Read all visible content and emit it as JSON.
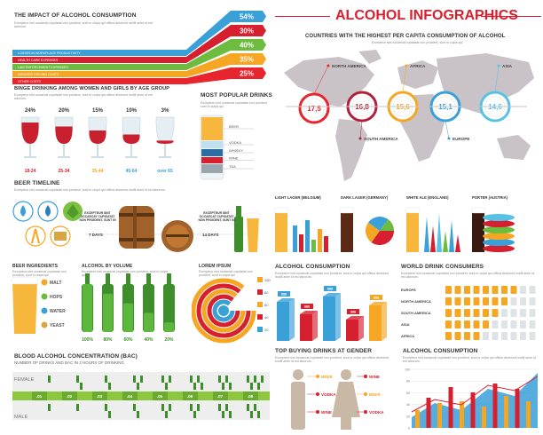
{
  "title": "ALCOHOL INFOGRAPHICS",
  "lorem": "Excepteur sint occaecat cupidatat non proident, sunt in culpa qui officia deserunt mollit anim id est laborum.",
  "lorem_short": "Excepteur sint occaecat cupidatat non proident, sunt in culpa qui",
  "impact": {
    "heading": "THE IMPACT OF ALCOHOL CONSUMPTION",
    "bands": [
      {
        "label": "LOSSES IN WORKPLACE PRODUCTIVITY",
        "pct": "54%",
        "color": "#3aa0d8"
      },
      {
        "label": "HEALTH CARE EXPENSES",
        "pct": "30%",
        "color": "#d6202f"
      },
      {
        "label": "LAW ENFORCEMENT EXPENSES",
        "pct": "40%",
        "color": "#6dbb3f"
      },
      {
        "label": "IMPAIRED DRIVING COSTS",
        "pct": "35%",
        "color": "#f5a623"
      },
      {
        "label": "OTHER COSTS",
        "pct": "25%",
        "color": "#e8242d"
      }
    ]
  },
  "binge": {
    "heading": "BINGE DRINKING AMONG WOMEN AND GIRLS BY AGE GROUP",
    "groups": [
      {
        "pct": "24%",
        "age": "18-24",
        "fill": 0.8
      },
      {
        "pct": "20%",
        "age": "25-34",
        "fill": 0.65
      },
      {
        "pct": "15%",
        "age": "35-44",
        "fill": 0.5
      },
      {
        "pct": "10%",
        "age": "45-64",
        "fill": 0.35
      },
      {
        "pct": "3%",
        "age": "over 65",
        "fill": 0.12
      }
    ]
  },
  "popular": {
    "heading": "MOST POPULAR DRINKS",
    "layers": [
      {
        "name": "BEER",
        "color": "#f6b73c"
      },
      {
        "name": "VODKA",
        "color": "#bfe0ef"
      },
      {
        "name": "WHISKY",
        "color": "#2b6ea3"
      },
      {
        "name": "WINE",
        "color": "#d6202f"
      },
      {
        "name": "TEA",
        "color": "#9aa5ad"
      }
    ]
  },
  "map": {
    "heading": "COUNTRIES WITH THE HIGHEST PER CAPITA CONSUMPTION OF ALCOHOL",
    "regions": [
      {
        "name": "NORTH AMERICA",
        "value": "17,5",
        "color": "#e8242d"
      },
      {
        "name": "SOUTH AMERICA",
        "value": "16,8",
        "color": "#b0223a"
      },
      {
        "name": "AFRICA",
        "value": "15,6",
        "color": "#f5a623"
      },
      {
        "name": "EUROPE",
        "value": "15,1",
        "color": "#3aa0d8"
      },
      {
        "name": "ASIA",
        "value": "14,6",
        "color": "#57c2e6"
      }
    ]
  },
  "beer_timeline": {
    "heading": "BEER TIMELINE",
    "step1": "EXCEPTEUR SINT OCCAECAT CUPIDATAT NON PROIDENT, SUNT IN",
    "step2": "EXCEPTEUR SINT OCCAECAT CUPIDATAT NON PROIDENT, SUNT IN",
    "days1": "7 DAYS",
    "days2": "14 DAYS"
  },
  "beer_types": [
    {
      "name": "LIGHT LAGER (BELGIUM)"
    },
    {
      "name": "DARK LAGER (GERMANY)"
    },
    {
      "name": "WHITE ALE (ENGLAND)"
    },
    {
      "name": "PORTER (AUSTRIA)"
    }
  ],
  "ingredients": {
    "heading": "BEER INGREDIENTS",
    "items": [
      "MALT",
      "HOPS",
      "WATER",
      "YEAST"
    ]
  },
  "by_volume": {
    "heading": "ALCOHOL BY VOLUME",
    "labels": [
      "100%",
      "80%",
      "60%",
      "40%",
      "20%"
    ],
    "levels": [
      1.0,
      0.8,
      0.6,
      0.4,
      0.2
    ]
  },
  "lorem_ipsum": {
    "heading": "LOREM IPSUM",
    "legend": [
      "100",
      "80",
      "60",
      "40",
      "20"
    ]
  },
  "consumption_bars": {
    "heading": "ALCOHOL CONSUMPTION",
    "badges": [
      "$$$",
      "$$$",
      "$$$",
      "$$$",
      "$$$"
    ]
  },
  "world": {
    "heading": "WORLD DRINK CONSUMERS",
    "rows": [
      {
        "name": "EUROPE",
        "count": 8
      },
      {
        "name": "NORTH AMERICA",
        "count": 7
      },
      {
        "name": "SOUTH AMERICA",
        "count": 6
      },
      {
        "name": "ASIA",
        "count": 5
      },
      {
        "name": "AFRICA",
        "count": 4
      }
    ]
  },
  "bac": {
    "heading": "BLOOD ALCOHOL CONCENTRATION (BAC)",
    "subheading": "NUMBER OF DRINKS AND BAC IN 2 HOURS OF DRINKING",
    "female": "FEMALE",
    "male": "MALE",
    "ticks": [
      ".01",
      ".02",
      ".03",
      ".04",
      ".05",
      ".06",
      ".07",
      ".08"
    ]
  },
  "gender": {
    "heading": "TOP BUYING DRINKS AT GENDER",
    "left": [
      "BEER",
      "VODKA",
      "WINE"
    ],
    "right": [
      "WINE",
      "BEER",
      "VODKA"
    ]
  },
  "consumption_chart": {
    "heading": "ALCOHOL CONSUMPTION",
    "y_ticks": [
      "100",
      "80",
      "60",
      "40",
      "20",
      "0"
    ]
  }
}
